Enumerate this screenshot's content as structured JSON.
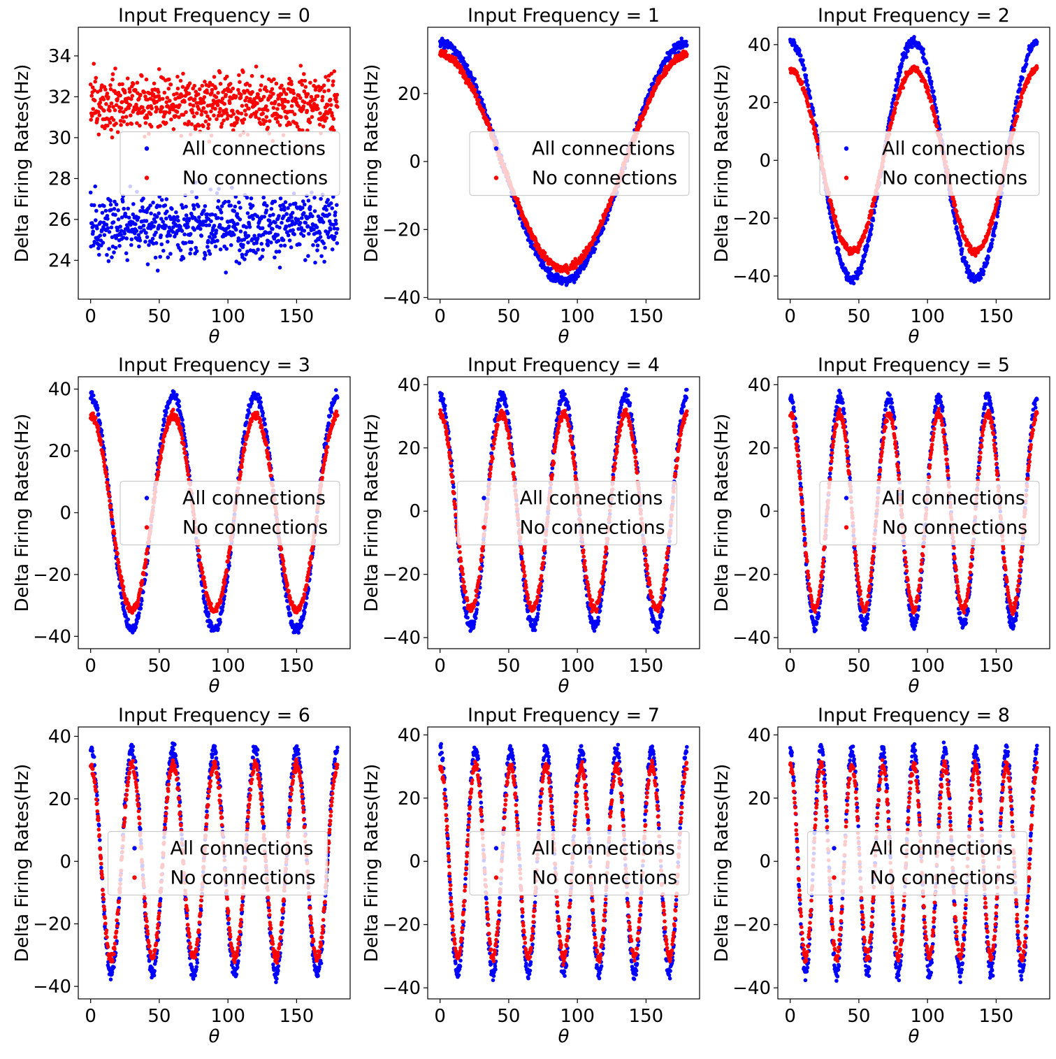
{
  "figure": {
    "background": "#ffffff"
  },
  "colors": {
    "all": "#0000ff",
    "none": "#ff0000",
    "axis": "#000000",
    "legend_border": "#cccccc"
  },
  "chart_data": [
    {
      "type": "scatter",
      "title": "Input Frequency = 0",
      "xlabel": "θ",
      "ylabel": "Delta Firing Rates(Hz)",
      "frequency": 0,
      "xlim": [
        -9,
        189
      ],
      "ylim": [
        22.1,
        35.4
      ],
      "xticks": [
        0,
        50,
        100,
        150
      ],
      "xtick_labels": [
        "0",
        "50",
        "100",
        "150"
      ],
      "yticks": [
        24,
        26,
        28,
        30,
        32,
        34
      ],
      "ytick_labels": [
        "24",
        "26",
        "28",
        "30",
        "32",
        "34"
      ],
      "legend": {
        "position": "center-right",
        "entries": [
          "All connections",
          "No connections"
        ]
      },
      "series": [
        {
          "name": "All connections",
          "color": "#0000ff",
          "mean": 25.7,
          "amplitude": 0,
          "noise": 1.1
        },
        {
          "name": "No connections",
          "color": "#ff0000",
          "mean": 31.7,
          "amplitude": 0,
          "noise": 1.0
        }
      ]
    },
    {
      "type": "scatter",
      "title": "Input Frequency = 1",
      "xlabel": "θ",
      "ylabel": "Delta Firing Rates(Hz)",
      "frequency": 1,
      "xlim": [
        -9,
        189
      ],
      "ylim": [
        -40.5,
        39.5
      ],
      "xticks": [
        0,
        50,
        100,
        150
      ],
      "xtick_labels": [
        "0",
        "50",
        "100",
        "150"
      ],
      "yticks": [
        -40,
        -20,
        0,
        20
      ],
      "ytick_labels": [
        "−40",
        "−20",
        "0",
        "20"
      ],
      "legend": {
        "position": "center-right",
        "entries": [
          "All connections",
          "No connections"
        ]
      },
      "series": [
        {
          "name": "All connections",
          "color": "#0000ff",
          "amplitude": 35,
          "noise": 1.0
        },
        {
          "name": "No connections",
          "color": "#ff0000",
          "amplitude": 31.5,
          "noise": 0.8
        }
      ]
    },
    {
      "type": "scatter",
      "title": "Input Frequency = 2",
      "xlabel": "θ",
      "ylabel": "Delta Firing Rates(Hz)",
      "frequency": 2,
      "xlim": [
        -9,
        189
      ],
      "ylim": [
        -48,
        46
      ],
      "xticks": [
        0,
        50,
        100,
        150
      ],
      "xtick_labels": [
        "0",
        "50",
        "100",
        "150"
      ],
      "yticks": [
        -40,
        -20,
        0,
        20,
        40
      ],
      "ytick_labels": [
        "−40",
        "−20",
        "0",
        "20",
        "40"
      ],
      "legend": {
        "position": "center-right",
        "entries": [
          "All connections",
          "No connections"
        ]
      },
      "series": [
        {
          "name": "All connections",
          "color": "#0000ff",
          "amplitude": 41,
          "noise": 1.2
        },
        {
          "name": "No connections",
          "color": "#ff0000",
          "amplitude": 31.5,
          "noise": 0.9
        }
      ]
    },
    {
      "type": "scatter",
      "title": "Input Frequency = 3",
      "xlabel": "θ",
      "ylabel": "Delta Firing Rates(Hz)",
      "frequency": 3,
      "xlim": [
        -9,
        189
      ],
      "ylim": [
        -44,
        44
      ],
      "xticks": [
        0,
        50,
        100,
        150
      ],
      "xtick_labels": [
        "0",
        "50",
        "100",
        "150"
      ],
      "yticks": [
        -40,
        -20,
        0,
        20,
        40
      ],
      "ytick_labels": [
        "−40",
        "−20",
        "0",
        "20",
        "40"
      ],
      "legend": {
        "position": "center-right",
        "entries": [
          "All connections",
          "No connections"
        ]
      },
      "series": [
        {
          "name": "All connections",
          "color": "#0000ff",
          "amplitude": 38,
          "noise": 1.2
        },
        {
          "name": "No connections",
          "color": "#ff0000",
          "amplitude": 31.5,
          "noise": 0.9
        }
      ]
    },
    {
      "type": "scatter",
      "title": "Input Frequency = 4",
      "xlabel": "θ",
      "ylabel": "Delta Firing Rates(Hz)",
      "frequency": 4,
      "xlim": [
        -9,
        189
      ],
      "ylim": [
        -43.5,
        42.5
      ],
      "xticks": [
        0,
        50,
        100,
        150
      ],
      "xtick_labels": [
        "0",
        "50",
        "100",
        "150"
      ],
      "yticks": [
        -40,
        -20,
        0,
        20,
        40
      ],
      "ytick_labels": [
        "−40",
        "−20",
        "0",
        "20",
        "40"
      ],
      "legend": {
        "position": "center",
        "entries": [
          "All connections",
          "No connections"
        ]
      },
      "series": [
        {
          "name": "All connections",
          "color": "#0000ff",
          "amplitude": 36.5,
          "noise": 1.3
        },
        {
          "name": "No connections",
          "color": "#ff0000",
          "amplitude": 31,
          "noise": 1.0
        }
      ]
    },
    {
      "type": "scatter",
      "title": "Input Frequency = 5",
      "xlabel": "θ",
      "ylabel": "Delta Firing Rates(Hz)",
      "frequency": 5,
      "xlim": [
        -9,
        189
      ],
      "ylim": [
        -43.5,
        42.5
      ],
      "xticks": [
        0,
        50,
        100,
        150
      ],
      "xtick_labels": [
        "0",
        "50",
        "100",
        "150"
      ],
      "yticks": [
        -40,
        -20,
        0,
        20,
        40
      ],
      "ytick_labels": [
        "−40",
        "−20",
        "0",
        "20",
        "40"
      ],
      "legend": {
        "position": "center-right",
        "entries": [
          "All connections",
          "No connections"
        ]
      },
      "series": [
        {
          "name": "All connections",
          "color": "#0000ff",
          "amplitude": 36,
          "noise": 1.3
        },
        {
          "name": "No connections",
          "color": "#ff0000",
          "amplitude": 31,
          "noise": 1.0
        }
      ]
    },
    {
      "type": "scatter",
      "title": "Input Frequency = 6",
      "xlabel": "θ",
      "ylabel": "Delta Firing Rates(Hz)",
      "frequency": 6,
      "xlim": [
        -9,
        189
      ],
      "ylim": [
        -44,
        43
      ],
      "xticks": [
        0,
        50,
        100,
        150
      ],
      "xtick_labels": [
        "0",
        "50",
        "100",
        "150"
      ],
      "yticks": [
        -40,
        -20,
        0,
        20,
        40
      ],
      "ytick_labels": [
        "−40",
        "−20",
        "0",
        "20",
        "40"
      ],
      "legend": {
        "position": "center",
        "entries": [
          "All connections",
          "No connections"
        ]
      },
      "series": [
        {
          "name": "All connections",
          "color": "#0000ff",
          "amplitude": 36,
          "noise": 1.4
        },
        {
          "name": "No connections",
          "color": "#ff0000",
          "amplitude": 31,
          "noise": 1.1
        }
      ]
    },
    {
      "type": "scatter",
      "title": "Input Frequency = 7",
      "xlabel": "θ",
      "ylabel": "Delta Firing Rates(Hz)",
      "frequency": 7,
      "xlim": [
        -9,
        189
      ],
      "ylim": [
        -43.5,
        42.5
      ],
      "xticks": [
        0,
        50,
        100,
        150
      ],
      "xtick_labels": [
        "0",
        "50",
        "100",
        "150"
      ],
      "yticks": [
        -40,
        -20,
        0,
        20,
        40
      ],
      "ytick_labels": [
        "−40",
        "−20",
        "0",
        "20",
        "40"
      ],
      "legend": {
        "position": "center-right",
        "entries": [
          "All connections",
          "No connections"
        ]
      },
      "series": [
        {
          "name": "All connections",
          "color": "#0000ff",
          "amplitude": 35.5,
          "noise": 1.5
        },
        {
          "name": "No connections",
          "color": "#ff0000",
          "amplitude": 30.5,
          "noise": 1.1
        }
      ]
    },
    {
      "type": "scatter",
      "title": "Input Frequency = 8",
      "xlabel": "θ",
      "ylabel": "Delta Firing Rates(Hz)",
      "frequency": 8,
      "xlim": [
        -9,
        189
      ],
      "ylim": [
        -43.5,
        42.5
      ],
      "xticks": [
        0,
        50,
        100,
        150
      ],
      "xtick_labels": [
        "0",
        "50",
        "100",
        "150"
      ],
      "yticks": [
        -40,
        -20,
        0,
        20,
        40
      ],
      "ytick_labels": [
        "−40",
        "−20",
        "0",
        "20",
        "40"
      ],
      "legend": {
        "position": "center",
        "entries": [
          "All connections",
          "No connections"
        ]
      },
      "series": [
        {
          "name": "All connections",
          "color": "#0000ff",
          "amplitude": 35.5,
          "noise": 1.5
        },
        {
          "name": "No connections",
          "color": "#ff0000",
          "amplitude": 30.5,
          "noise": 1.1
        }
      ]
    }
  ]
}
